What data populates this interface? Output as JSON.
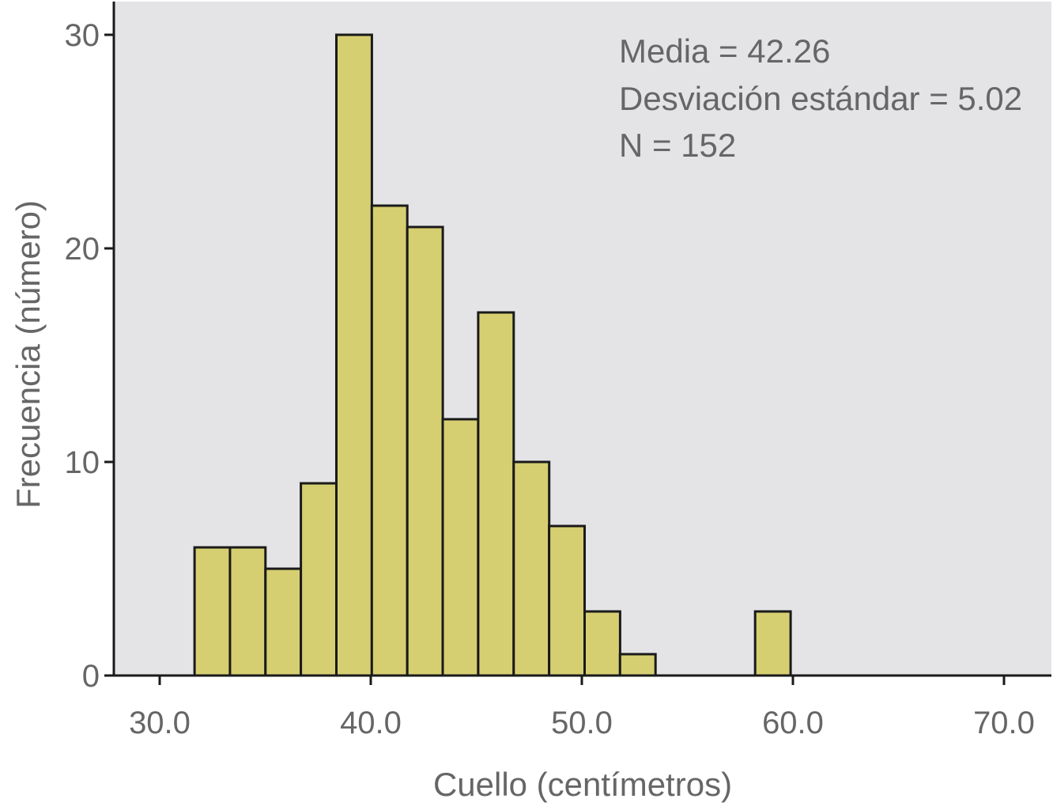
{
  "chart_data": {
    "type": "bar",
    "subtype": "histogram",
    "xlabel": "Cuello (centímetros)",
    "ylabel": "Frecuencia (número)",
    "xlim": [
      28.0,
      72.0
    ],
    "ylim": [
      0,
      30
    ],
    "x_ticks": [
      30.0,
      40.0,
      50.0,
      60.0,
      70.0
    ],
    "x_tick_labels": [
      "30.0",
      "40.0",
      "50.0",
      "60.0",
      "70.0"
    ],
    "y_ticks": [
      0,
      10,
      20,
      30
    ],
    "y_tick_labels": [
      "0",
      "10",
      "20",
      "30"
    ],
    "bin_width": 1.68,
    "bins": [
      {
        "start": 31.65,
        "end": 33.33,
        "value": 6
      },
      {
        "start": 33.33,
        "end": 35.01,
        "value": 6
      },
      {
        "start": 35.01,
        "end": 36.69,
        "value": 5
      },
      {
        "start": 36.69,
        "end": 38.37,
        "value": 9
      },
      {
        "start": 38.37,
        "end": 40.05,
        "value": 30
      },
      {
        "start": 40.05,
        "end": 41.73,
        "value": 22
      },
      {
        "start": 41.73,
        "end": 43.41,
        "value": 21
      },
      {
        "start": 43.41,
        "end": 45.09,
        "value": 12
      },
      {
        "start": 45.09,
        "end": 46.77,
        "value": 17
      },
      {
        "start": 46.77,
        "end": 48.45,
        "value": 10
      },
      {
        "start": 48.45,
        "end": 50.13,
        "value": 7
      },
      {
        "start": 50.13,
        "end": 51.81,
        "value": 3
      },
      {
        "start": 51.81,
        "end": 53.49,
        "value": 1
      },
      {
        "start": 58.21,
        "end": 59.89,
        "value": 3
      }
    ],
    "annotations": [
      "Media = 42.26",
      "Desviación estándar = 5.02",
      "N = 152"
    ],
    "legend": "none",
    "grid": false,
    "colors": {
      "bar_fill": "#d6cf72",
      "bar_stroke": "#1a1a1a",
      "plot_background": "#e4e4e7",
      "text": "#666666"
    }
  }
}
